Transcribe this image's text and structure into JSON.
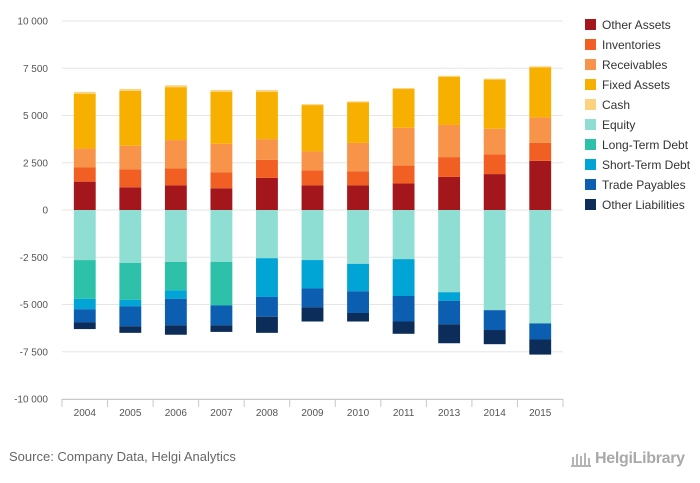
{
  "chart_data": {
    "type": "bar",
    "stacked": true,
    "categories": [
      "2004",
      "2005",
      "2006",
      "2007",
      "2008",
      "2009",
      "2010",
      "2011",
      "2013",
      "2014",
      "2015"
    ],
    "ylim": [
      -10000,
      10000
    ],
    "yticks": [
      10000,
      7500,
      5000,
      2500,
      0,
      -2500,
      -5000,
      -7500,
      -10000
    ],
    "ytick_labels": [
      "10 000",
      "7 500",
      "5 000",
      "2 500",
      "0",
      "-2 500",
      "-5 000",
      "-7 500",
      "-10 000"
    ],
    "grid": true,
    "legend_position": "right",
    "series": [
      {
        "name": "Other Assets",
        "color": "#A3161C",
        "values": [
          1500,
          1200,
          1300,
          1150,
          1700,
          1300,
          1300,
          1400,
          1750,
          1900,
          2600
        ]
      },
      {
        "name": "Inventories",
        "color": "#F15F22",
        "values": [
          750,
          950,
          900,
          850,
          950,
          800,
          750,
          950,
          1050,
          1050,
          950
        ]
      },
      {
        "name": "Receivables",
        "color": "#F7944A",
        "values": [
          1000,
          1250,
          1500,
          1500,
          1100,
          1000,
          1500,
          2000,
          1700,
          1350,
          1350
        ]
      },
      {
        "name": "Fixed Assets",
        "color": "#F7B000",
        "values": [
          2900,
          2900,
          2800,
          2750,
          2500,
          2450,
          2150,
          2050,
          2550,
          2600,
          2650
        ]
      },
      {
        "name": "Cash",
        "color": "#FDD27E",
        "values": [
          100,
          100,
          100,
          100,
          100,
          50,
          50,
          50,
          50,
          50,
          50
        ]
      },
      {
        "name": "Equity",
        "color": "#8FDED3",
        "values": [
          -2650,
          -2800,
          -2750,
          -2750,
          -2550,
          -2650,
          -2850,
          -2600,
          -4350,
          -5300,
          -6000
        ]
      },
      {
        "name": "Long-Term Debt",
        "color": "#2EC1A9",
        "values": [
          -2050,
          -1950,
          -1500,
          -2300,
          0,
          0,
          0,
          0,
          0,
          0,
          0
        ]
      },
      {
        "name": "Short-Term Debt",
        "color": "#00A4D5",
        "values": [
          -550,
          -350,
          -450,
          0,
          -2050,
          -1500,
          -1450,
          -1950,
          -450,
          0,
          0
        ]
      },
      {
        "name": "Trade Payables",
        "color": "#0B5EB0",
        "values": [
          -700,
          -1050,
          -1400,
          -1050,
          -1050,
          -1000,
          -1150,
          -1350,
          -1250,
          -1050,
          -850
        ]
      },
      {
        "name": "Other Liabilities",
        "color": "#0C2D59",
        "values": [
          -350,
          -350,
          -500,
          -350,
          -850,
          -750,
          -450,
          -650,
          -1000,
          -750,
          -800
        ]
      }
    ]
  },
  "footer": {
    "source": "Source: Company Data, Helgi Analytics",
    "brand": "HelgiLibrary"
  }
}
